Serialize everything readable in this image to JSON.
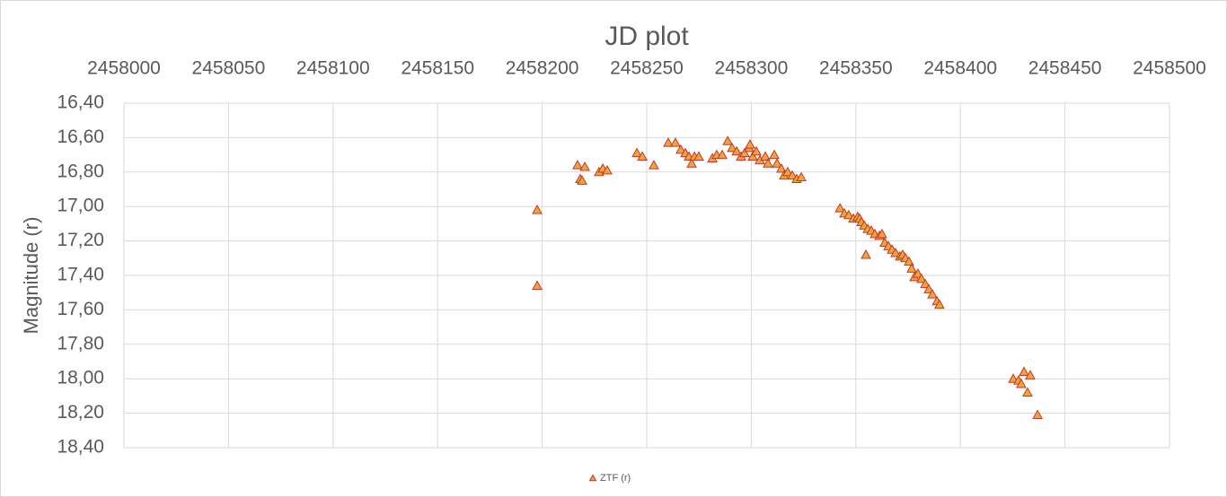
{
  "chart_data": {
    "type": "scatter",
    "title": "JD plot",
    "y_label": "Magnitude (r)",
    "xlim": [
      2458000,
      2458500
    ],
    "xticks": [
      2458000,
      2458050,
      2458100,
      2458150,
      2458200,
      2458250,
      2458300,
      2458350,
      2458400,
      2458450,
      2458500
    ],
    "ylim": [
      16.4,
      18.4
    ],
    "y_inverted": true,
    "x_axis_position": "top",
    "grid": true,
    "legend": "bottom",
    "yticks": [
      {
        "value": 16.4,
        "label": "16,40"
      },
      {
        "value": 16.6,
        "label": "16,60"
      },
      {
        "value": 16.8,
        "label": "16,80"
      },
      {
        "value": 17.0,
        "label": "17,00"
      },
      {
        "value": 17.2,
        "label": "17,20"
      },
      {
        "value": 17.4,
        "label": "17,40"
      },
      {
        "value": 17.6,
        "label": "17,60"
      },
      {
        "value": 17.8,
        "label": "17,80"
      },
      {
        "value": 18.0,
        "label": "18,00"
      },
      {
        "value": 18.2,
        "label": "18,20"
      },
      {
        "value": 18.4,
        "label": "18,40"
      }
    ],
    "series": [
      {
        "name": "ZTF (r)",
        "color": "#f2a33a",
        "edge_color": "#c0392b",
        "marker": "triangle",
        "x": [
          2458197.6,
          2458197.6,
          2458216.9,
          2458218.2,
          2458219.1,
          2458220.4,
          2458227.2,
          2458229.0,
          2458231.1,
          2458245.3,
          2458247.9,
          2458253.4,
          2458260.3,
          2458263.7,
          2458266.3,
          2458268.5,
          2458270.2,
          2458271.5,
          2458272.8,
          2458274.9,
          2458281.4,
          2458283.5,
          2458286.1,
          2458288.7,
          2458290.8,
          2458293.0,
          2458295.1,
          2458296.8,
          2458299.0,
          2458299.4,
          2458300.7,
          2458302.4,
          2458304.1,
          2458306.7,
          2458308.0,
          2458311.0,
          2458312.3,
          2458314.4,
          2458315.7,
          2458317.4,
          2458319.6,
          2458321.7,
          2458323.9,
          2458342.4,
          2458344.5,
          2458346.6,
          2458348.8,
          2458350.9,
          2458351.8,
          2458352.7,
          2458354.0,
          2458354.8,
          2458355.7,
          2458357.4,
          2458359.1,
          2458361.3,
          2458362.5,
          2458363.8,
          2458365.6,
          2458367.3,
          2458369.0,
          2458371.1,
          2458372.4,
          2458373.7,
          2458375.4,
          2458376.7,
          2458378.0,
          2458379.7,
          2458381.4,
          2458383.2,
          2458384.9,
          2458386.6,
          2458388.8,
          2458390.0,
          2458425.3,
          2458427.8,
          2458429.1,
          2458430.4,
          2458432.1,
          2458433.4,
          2458436.9
        ],
        "values": [
          17.02,
          17.46,
          16.76,
          16.84,
          16.85,
          16.77,
          16.8,
          16.78,
          16.79,
          16.69,
          16.71,
          16.76,
          16.63,
          16.63,
          16.67,
          16.69,
          16.71,
          16.75,
          16.71,
          16.71,
          16.72,
          16.7,
          16.7,
          16.62,
          16.66,
          16.68,
          16.71,
          16.69,
          16.66,
          16.64,
          16.71,
          16.68,
          16.73,
          16.71,
          16.75,
          16.7,
          16.75,
          16.78,
          16.82,
          16.8,
          16.82,
          16.84,
          16.83,
          17.01,
          17.04,
          17.05,
          17.07,
          17.06,
          17.07,
          17.09,
          17.11,
          17.28,
          17.13,
          17.14,
          17.16,
          17.17,
          17.16,
          17.21,
          17.23,
          17.25,
          17.27,
          17.29,
          17.28,
          17.3,
          17.32,
          17.36,
          17.41,
          17.39,
          17.42,
          17.45,
          17.48,
          17.51,
          17.55,
          17.57,
          18.0,
          18.01,
          18.03,
          17.96,
          18.08,
          17.98,
          18.21
        ]
      }
    ]
  }
}
